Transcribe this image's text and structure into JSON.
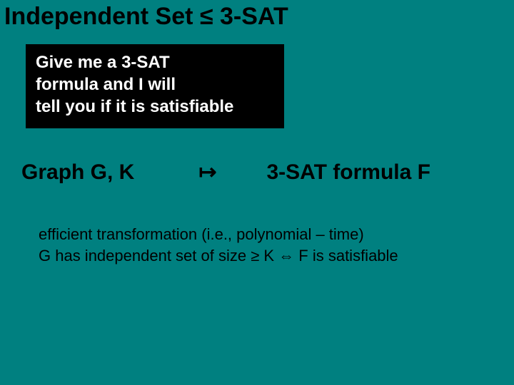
{
  "colors": {
    "background": "#008080",
    "title_text": "#000000",
    "box_bg": "#000000",
    "box_text": "#ffffff",
    "body_text": "#000000"
  },
  "typography": {
    "family": "Arial",
    "title_size_pt": 34,
    "box_size_pt": 24,
    "mapping_size_pt": 30,
    "footer_size_pt": 22,
    "weight": "bold"
  },
  "title": "Independent Set  ≤  3-SAT",
  "oracle_box": {
    "line1": "Give me a 3-SAT",
    "line2": "formula and I will",
    "line3": "tell you if it is satisfiable"
  },
  "mapping": {
    "left": "Graph G, K",
    "arrow": "↦",
    "right": "3-SAT formula F"
  },
  "footer": {
    "line1": "efficient transformation (i.e., polynomial – time)",
    "line2": "G has independent set of size ≥ K ⇔ F is satisfiable"
  }
}
